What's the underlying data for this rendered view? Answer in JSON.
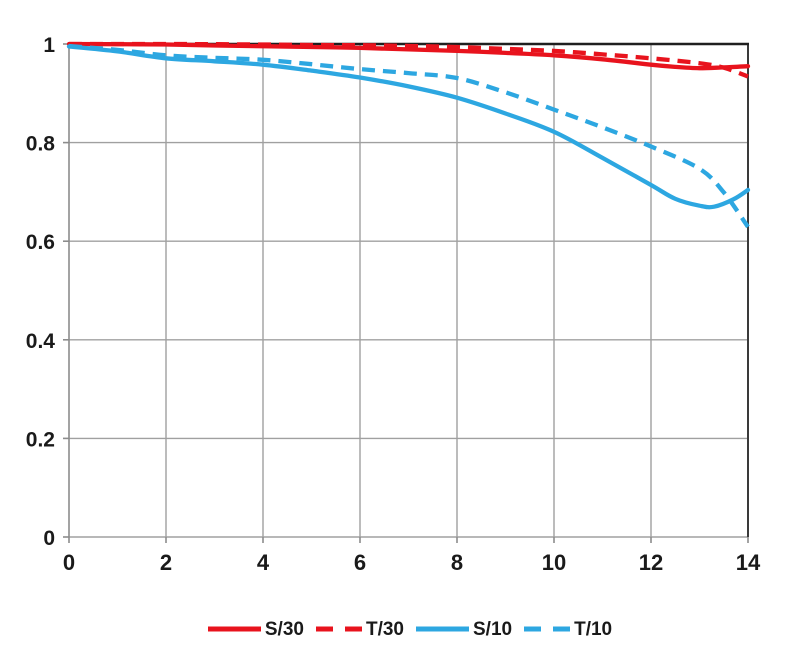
{
  "chart_data": {
    "type": "line",
    "title": "",
    "xlabel": "",
    "ylabel": "",
    "xlim": [
      0,
      14
    ],
    "ylim": [
      0,
      1
    ],
    "grid": true,
    "legend_position": "bottom",
    "x_ticks": [
      {
        "v": 0,
        "label": "0"
      },
      {
        "v": 2,
        "label": "2"
      },
      {
        "v": 4,
        "label": "4"
      },
      {
        "v": 6,
        "label": "6"
      },
      {
        "v": 8,
        "label": "8"
      },
      {
        "v": 10,
        "label": "10"
      },
      {
        "v": 12,
        "label": "12"
      },
      {
        "v": 14,
        "label": "14"
      }
    ],
    "y_ticks": [
      {
        "v": 1,
        "label": "1"
      },
      {
        "v": 0.8,
        "label": "0.8"
      },
      {
        "v": 0.6,
        "label": "0.6"
      },
      {
        "v": 0.4,
        "label": "0.4"
      },
      {
        "v": 0.2,
        "label": "0.2"
      },
      {
        "v": 0,
        "label": "0"
      }
    ],
    "series": [
      {
        "name": "T/30",
        "color": "#e8131d",
        "dash": true,
        "points": [
          [
            0,
            1.0
          ],
          [
            1,
            1.0
          ],
          [
            2,
            1.0
          ],
          [
            3,
            0.9995
          ],
          [
            4,
            0.999
          ],
          [
            5,
            0.998
          ],
          [
            6,
            0.9975
          ],
          [
            7,
            0.996
          ],
          [
            8,
            0.994
          ],
          [
            9,
            0.99
          ],
          [
            10,
            0.986
          ],
          [
            11,
            0.979
          ],
          [
            12,
            0.971
          ],
          [
            13,
            0.961
          ],
          [
            13.5,
            0.952
          ],
          [
            14,
            0.934
          ]
        ]
      },
      {
        "name": "S/30",
        "color": "#e8131d",
        "dash": false,
        "points": [
          [
            0,
            1.0
          ],
          [
            1,
            0.9995
          ],
          [
            2,
            0.999
          ],
          [
            3,
            0.997
          ],
          [
            4,
            0.9955
          ],
          [
            5,
            0.994
          ],
          [
            6,
            0.992
          ],
          [
            7,
            0.989
          ],
          [
            8,
            0.986
          ],
          [
            9,
            0.982
          ],
          [
            10,
            0.977
          ],
          [
            11,
            0.969
          ],
          [
            12,
            0.958
          ],
          [
            12.5,
            0.9535
          ],
          [
            13,
            0.951
          ],
          [
            13.5,
            0.9525
          ],
          [
            14,
            0.955
          ]
        ]
      },
      {
        "name": "T/10",
        "color": "#2da7e1",
        "dash": true,
        "points": [
          [
            0,
            0.996
          ],
          [
            1,
            0.988
          ],
          [
            2,
            0.977
          ],
          [
            3,
            0.972
          ],
          [
            4,
            0.968
          ],
          [
            5,
            0.959
          ],
          [
            6,
            0.949
          ],
          [
            7,
            0.941
          ],
          [
            8,
            0.931
          ],
          [
            9,
            0.902
          ],
          [
            10,
            0.867
          ],
          [
            11,
            0.831
          ],
          [
            12,
            0.792
          ],
          [
            13,
            0.747
          ],
          [
            13.5,
            0.699
          ],
          [
            14,
            0.629
          ]
        ]
      },
      {
        "name": "S/10",
        "color": "#2da7e1",
        "dash": false,
        "points": [
          [
            0,
            0.995
          ],
          [
            1,
            0.985
          ],
          [
            2,
            0.971
          ],
          [
            3,
            0.965
          ],
          [
            4,
            0.958
          ],
          [
            5,
            0.946
          ],
          [
            6,
            0.932
          ],
          [
            7,
            0.914
          ],
          [
            8,
            0.891
          ],
          [
            9,
            0.859
          ],
          [
            10,
            0.822
          ],
          [
            11,
            0.769
          ],
          [
            12,
            0.714
          ],
          [
            12.5,
            0.686
          ],
          [
            13,
            0.672
          ],
          [
            13.3,
            0.67
          ],
          [
            13.7,
            0.685
          ],
          [
            14,
            0.704
          ]
        ]
      }
    ],
    "legend_order": [
      "S/30",
      "T/30",
      "S/10",
      "T/10"
    ]
  },
  "colors": {
    "background": "#ffffff",
    "gridline": "#a0a0a0",
    "axis": "#8c8c8c",
    "frame_top": "#1f1f1f",
    "frame_right": "#3a3a3a",
    "text": "#1a1a1a",
    "red": "#e8131d",
    "blue": "#2da7e1"
  }
}
